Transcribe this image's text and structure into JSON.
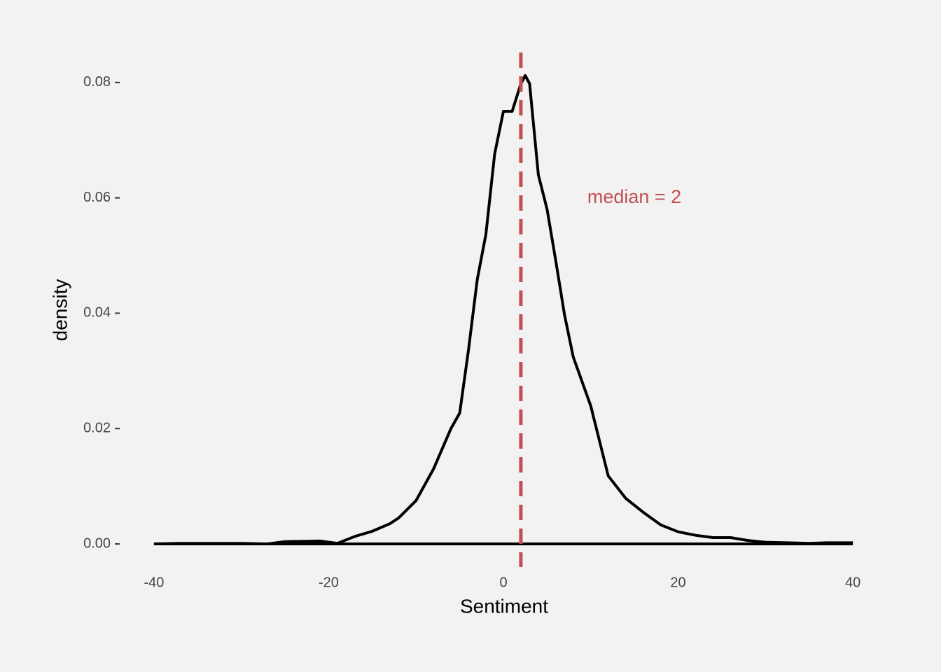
{
  "chart_data": {
    "type": "density",
    "x_label": "Sentiment",
    "y_label": "density",
    "x": [
      -40,
      -37,
      -30,
      -27,
      -25,
      -21,
      -19,
      -17,
      -15,
      -13,
      -12,
      -11,
      -10,
      -8,
      -6,
      -5,
      -4,
      -3,
      -2,
      -1,
      0,
      1,
      2,
      2.5,
      3,
      4,
      5,
      6,
      7,
      8,
      10,
      12,
      14,
      16,
      18,
      20,
      22,
      24,
      26,
      28,
      30,
      35,
      37,
      40
    ],
    "values": [
      0,
      0.0001,
      0.0001,
      0,
      0.0004,
      0.0005,
      0.0001,
      0.0013,
      0.0022,
      0.0035,
      0.0045,
      0.006,
      0.0075,
      0.013,
      0.02,
      0.0227,
      0.0336,
      0.0458,
      0.0537,
      0.0676,
      0.075,
      0.075,
      0.0798,
      0.0812,
      0.0798,
      0.064,
      0.058,
      0.049,
      0.0397,
      0.0324,
      0.0239,
      0.0118,
      0.0079,
      0.0055,
      0.0033,
      0.0021,
      0.0015,
      0.0011,
      0.0011,
      0.0006,
      0.0003,
      0.0001,
      0.0002,
      0.0002
    ],
    "color": "#000000",
    "median_line": {
      "x": 2,
      "color": "#c44e52",
      "label": "median =  2"
    },
    "xlim": [
      -44,
      44
    ],
    "xticks": [
      -40,
      -20,
      0,
      20,
      40
    ],
    "ylim": [
      -0.004,
      0.0852
    ],
    "yticks": [
      {
        "value": 0,
        "label": "0.00"
      },
      0.02,
      0.04,
      0.06,
      0.08
    ]
  }
}
